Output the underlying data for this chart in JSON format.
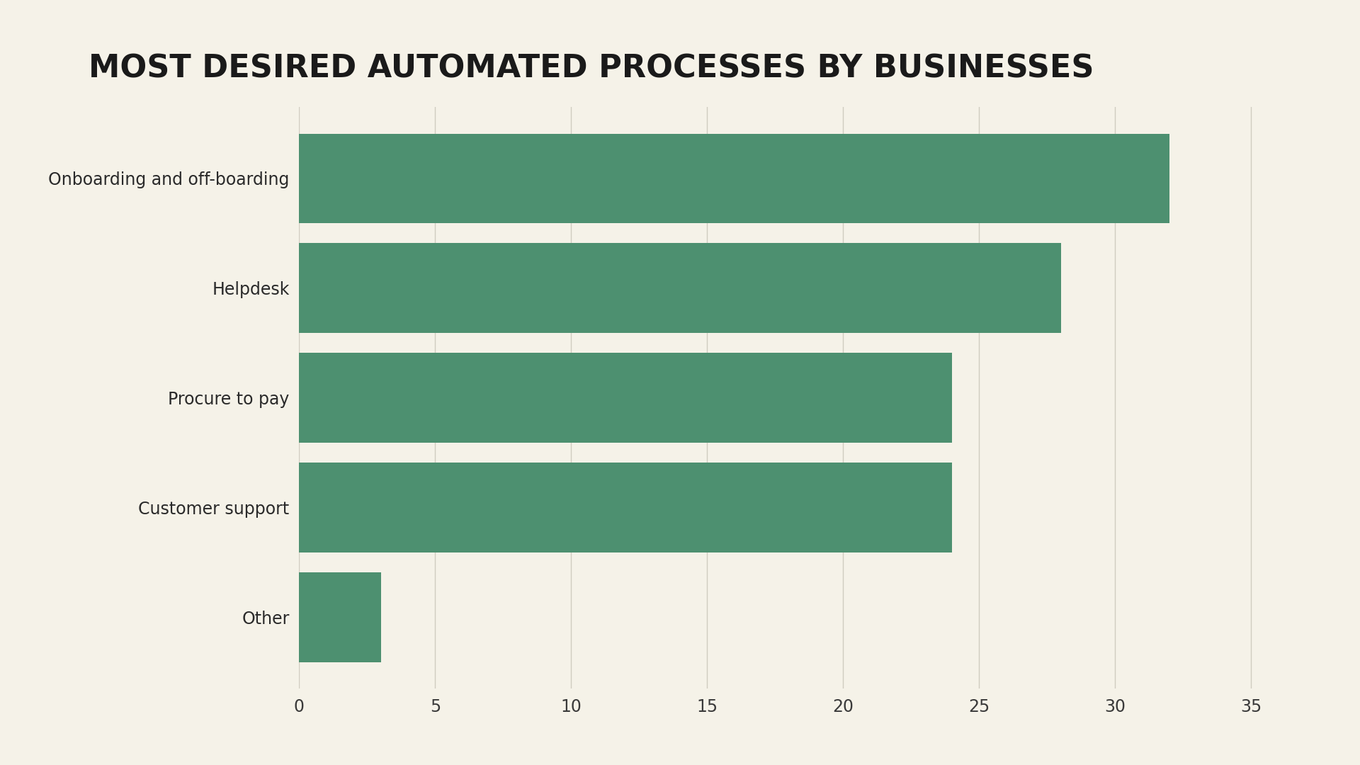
{
  "title": "MOST DESIRED AUTOMATED PROCESSES BY BUSINESSES",
  "categories": [
    "Onboarding and off-boarding",
    "Helpdesk",
    "Procure to pay",
    "Customer support",
    "Other"
  ],
  "values": [
    32,
    28,
    24,
    24,
    3
  ],
  "bar_color": "#4d9070",
  "background_color": "#f5f2e8",
  "title_fontsize": 32,
  "label_fontsize": 17,
  "tick_fontsize": 17,
  "xlim": [
    0,
    37
  ],
  "xticks": [
    0,
    5,
    10,
    15,
    20,
    25,
    30,
    35
  ],
  "bar_height": 0.82,
  "title_color": "#1a1a1a",
  "label_color": "#2a2a2a",
  "tick_color": "#3a3a3a",
  "gridline_color": "#d0ccc0"
}
